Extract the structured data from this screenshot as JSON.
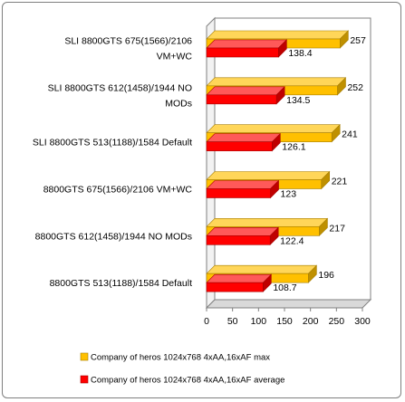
{
  "chart_data": {
    "type": "bar",
    "orientation": "horizontal",
    "style": "3d",
    "categories": [
      "SLI 8800GTS 675(1566)/2106 VM+WC",
      "SLI 8800GTS 612(1458)/1944 NO MODs",
      "SLI 8800GTS 513(1188)/1584 Default",
      "8800GTS 675(1566)/2106 VM+WC",
      "8800GTS 612(1458)/1944 NO MODs",
      "8800GTS 513(1188)/1584 Default"
    ],
    "category_lines": [
      [
        "SLI 8800GTS 675(1566)/2106",
        "VM+WC"
      ],
      [
        "SLI 8800GTS 612(1458)/1944 NO",
        "MODs"
      ],
      [
        "SLI 8800GTS 513(1188)/1584 Default"
      ],
      [
        "8800GTS 675(1566)/2106 VM+WC"
      ],
      [
        "8800GTS 612(1458)/1944 NO MODs"
      ],
      [
        "8800GTS 513(1188)/1584 Default"
      ]
    ],
    "series": [
      {
        "name": "Company of heros 1024x768 4xAA,16xAF max",
        "color": "#ffc000",
        "values": [
          257,
          252,
          241,
          221,
          217,
          196
        ],
        "labels": [
          "257",
          "252",
          "241",
          "221",
          "217",
          "196"
        ]
      },
      {
        "name": "Company of heros 1024x768 4xAA,16xAF average",
        "color": "#ff0000",
        "values": [
          138.4,
          134.5,
          126.1,
          123,
          122.4,
          108.7
        ],
        "labels": [
          "138.4",
          "134.5",
          "126.1",
          "123",
          "122.4",
          "108.7"
        ]
      }
    ],
    "xlim": [
      0,
      300
    ],
    "x_ticks": [
      "0",
      "50",
      "100",
      "150",
      "200",
      "250",
      "300"
    ],
    "xlabel": "",
    "ylabel": "",
    "title": "",
    "grid": false,
    "legend_position": "bottom"
  }
}
